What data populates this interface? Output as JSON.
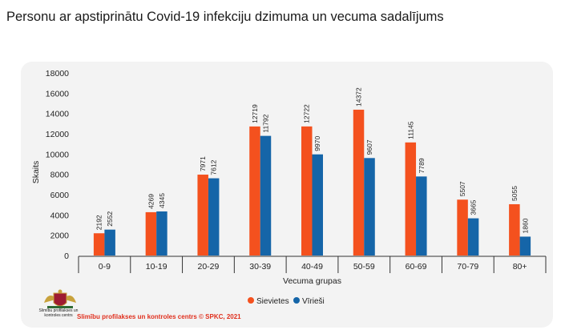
{
  "page": {
    "title": "Personu ar apstiprinātu Covid-19 infekciju dzimuma un vecuma sadalījums"
  },
  "footer": {
    "source": "Slimību profilakses un kontroles centrs © SPKC, 2021",
    "logo_text": "Slimību profilakses un kontroles centrs"
  },
  "colors": {
    "female": "#f4511e",
    "male": "#1565a8",
    "background": "#f3f3f3"
  },
  "chart_data": {
    "type": "bar",
    "title": "",
    "xlabel": "Vecuma grupas",
    "ylabel": "Skaits",
    "ylim": [
      0,
      18000
    ],
    "yticks": [
      0,
      2000,
      4000,
      6000,
      8000,
      10000,
      12000,
      14000,
      16000,
      18000
    ],
    "categories": [
      "0-9",
      "10-19",
      "20-29",
      "30-39",
      "40-49",
      "50-59",
      "60-69",
      "70-79",
      "80+"
    ],
    "series": [
      {
        "name": "Sievietes",
        "color": "#f4511e",
        "values": [
          2192,
          4269,
          7971,
          12719,
          12722,
          14372,
          11145,
          5507,
          5055
        ]
      },
      {
        "name": "Vīrieši",
        "color": "#1565a8",
        "values": [
          2552,
          4345,
          7612,
          11792,
          9970,
          9607,
          7789,
          3665,
          1860
        ]
      }
    ],
    "legend_position": "bottom",
    "grid": false,
    "data_labels": true
  }
}
